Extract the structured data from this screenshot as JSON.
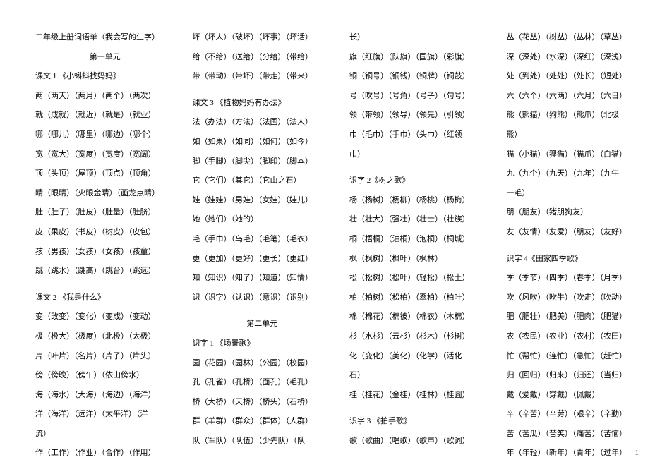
{
  "col1": [
    "二年级上册词语单（我会写的生字）",
    "第一单元",
    "课文 1  《小蝌蚪找妈妈》",
    "两（两天）（两月）（两个）（两次）",
    "就（成就）（就近）（就是）（就业）",
    "哪（哪儿）（哪里）（哪边）（哪个）",
    "宽（宽大）（宽度）（宽度）（宽阔）",
    "顶（头顶）（屋顶）（顶点）（顶角）",
    "睛（眼睛）（火眼金睛）（画龙点睛）",
    "肚（肚子）（肚皮）（肚量）（肚脐）",
    "皮（果皮）（书皮）（树皮）（皮包）",
    "孩（男孩）（女孩）（女孩）（孩童）",
    "跳（跳水）（跳高）（跳台）（跳远）",
    "",
    "课文 2  《我是什么》",
    "变（改变）（变化）（变成）（变动）",
    "极（极大）（极度）（北极）（太极）",
    "片（叶片）（名片）（片子）（片头）",
    "傍（傍晚）（傍午）（依山傍水）",
    "海（海水）（大海）（海边）（海洋）",
    "洋（海洋）（远洋）（太平洋）（洋",
    "流）",
    "作（工作）（作业）（合作）（作用）"
  ],
  "col2": [
    "坏（坏人）（破坏）（坏事）（坏话）",
    "给（不给）（送给）（分给）（带给）",
    "带（带动）（带坏）（带走）（带来）",
    "",
    "课文 3  《植物妈妈有办法》",
    "法（办法）（方法）（法国）（法人）",
    "如（如果）（如同）（如何）（如今）",
    "脚（手脚）（脚尖）（脚印）（脚本）",
    "它（它们）（其它）（它山之石）",
    "娃（娃娃）（男娃）（女娃）（娃儿）",
    "她（她们）（她的）",
    "毛（手巾）（乌毛）（毛笔）（毛衣）",
    "更（更加）（更好）（更长）（更红）",
    "知（知识）（知了）（知道）（知情）",
    "识（识字）（认识）（意识）（识别）",
    "",
    "第二单元",
    "识字 1 《场景歌》",
    "园（花园）（园林）（公园）（校园）",
    "孔（孔雀）（孔桥）（面孔）（毛孔）",
    "桥（大桥）（天桥）（桥头）（石桥）",
    "群（羊群）（群众）（群体）（人群）",
    "队（军队）（队伍）（少先队）（队"
  ],
  "col3": [
    "长）",
    "旗（红旗）（队旗）（国旗）（彩旗）",
    "铜（铜号）（铜钱）（铜牌）（铜鼓）",
    "号（吹号）（号角）（号子）（句号）",
    "领（带领）（领导）（领先）（引领）",
    "巾（毛巾）（手巾）（头巾）（红领",
    "巾）",
    "",
    "识字 2《树之歌》",
    "杨（杨树）（杨柳）（杨桃）（杨梅）",
    "壮（壮大）（强壮）（壮士）（壮族）",
    "桐（梧桐）（油桐）（泡桐）（桐城）",
    "枫（枫树）（枫叶）（枫林）",
    "松（松树）（松叶）（轻松）（松土）",
    "柏（柏树）（松柏）（翠柏）（柏叶）",
    "棉（棉花）（棉被）（棉衣）（木棉）",
    "杉（水杉）（云杉）（杉木）（杉树）",
    "化（变化）（美化）（化学）（活化",
    "石）",
    "桂（桂花）（金桂）（桂林）（桂圆）",
    "",
    "识字 3 《拍手歌》",
    "歌（歌曲）（唱歌）（歌声）（歌词）"
  ],
  "col4": [
    "丛（花丛）（树丛）（丛林）（草丛）",
    "深（深处）（水深）（深红）（深浅）",
    "处（到处）（处处）（处长）（短处）",
    "六（六个）（六两）（六月）（六日）",
    "熊（熊猫）（狗熊）（熊爪）（北极",
    "熊）",
    "猫（小猫）（狸猫）（猫爪）（白猫）",
    "九（九个）（九天）（九年）（九牛",
    "一毛）",
    "朋（朋友）（猪朋狗友）",
    "友（友情）（友爱）（朋友）（友好）",
    "",
    "识字 4《田家四季歌》",
    "季（季节）（四季）（春季）（月季）",
    "吹（风吹）（吹牛）（吹走）（吹动）",
    "肥（肥壮）（肥美）（肥肉）（肥猫）",
    "农（农民）（农业）（农村）（农田）",
    "忙（帮忙）（连忙）（急忙）（赶忙）",
    "归（回归）（归来）（归还）（当归）",
    "戴（爱戴）（穿戴）（佩戴）",
    "辛（辛苦）（辛劳）（艰辛）（辛勤）",
    "苦（苦瓜）（苦笑）（痛苦）（苦恼）",
    "年（年轻）（新年）（青年）（过年）"
  ],
  "page_num": "1"
}
